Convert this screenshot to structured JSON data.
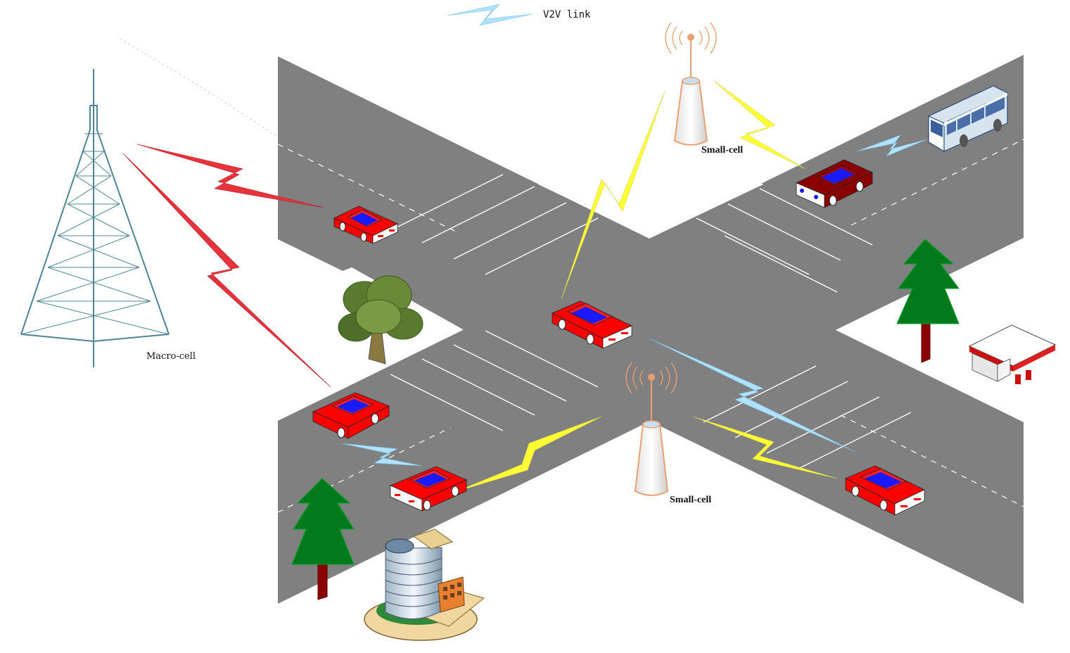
{
  "legend": {
    "v2v_label": "V2V link"
  },
  "labels": {
    "macro_cell": "Macro-cell",
    "small_cell_top": "Small-cell",
    "small_cell_bottom": "Small-cell"
  },
  "colors": {
    "road": "#808080",
    "macro_link": "#e8323c",
    "small_cell_link": "#ffff33",
    "v2v_link": "#aee2ff",
    "car_body": "#ff0000",
    "car_window": "#1a1aff",
    "dark_car_body": "#8b0000",
    "tree_green": "#007a1a",
    "tree_trunk": "#8b0000",
    "tower_lines": "#4f8494",
    "small_cell_base": "#f4b083"
  },
  "icons": [
    "macro-tower-icon",
    "small-cell-icon",
    "car-icon",
    "bus-icon",
    "tree-icon",
    "gas-station-icon",
    "office-building-icon",
    "lightning-icon"
  ]
}
